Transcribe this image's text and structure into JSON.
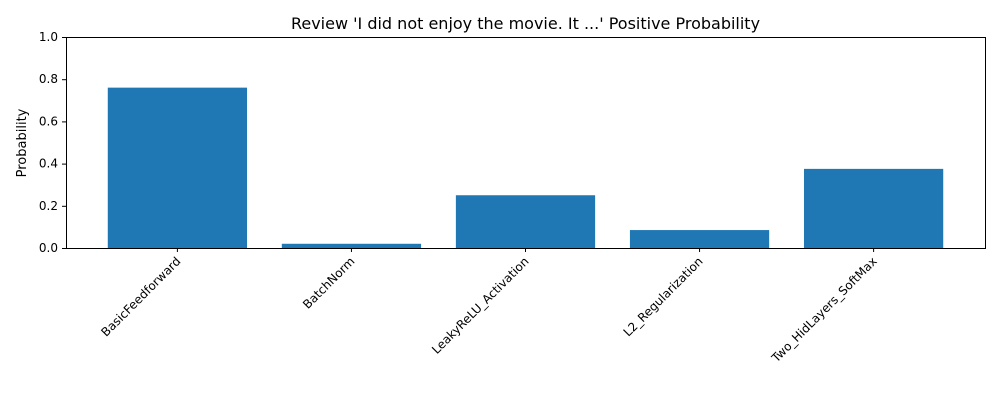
{
  "chart_data": {
    "type": "bar",
    "title": "Review 'I did not enjoy the movie. It ...' Positive Probability",
    "xlabel": "",
    "ylabel": "Probability",
    "categories": [
      "BasicFeedforward",
      "BatchNorm",
      "LeakyReLU_Activation",
      "L2_Regularization",
      "Two_HidLayers_SoftMax"
    ],
    "values": [
      0.76,
      0.02,
      0.25,
      0.085,
      0.375
    ],
    "ylim": [
      0,
      1.0
    ],
    "yticks": [
      "0.0",
      "0.2",
      "0.4",
      "0.6",
      "0.8",
      "1.0"
    ],
    "bar_color": "#1f77b4",
    "grid": false,
    "x_tick_rotation": 45
  }
}
